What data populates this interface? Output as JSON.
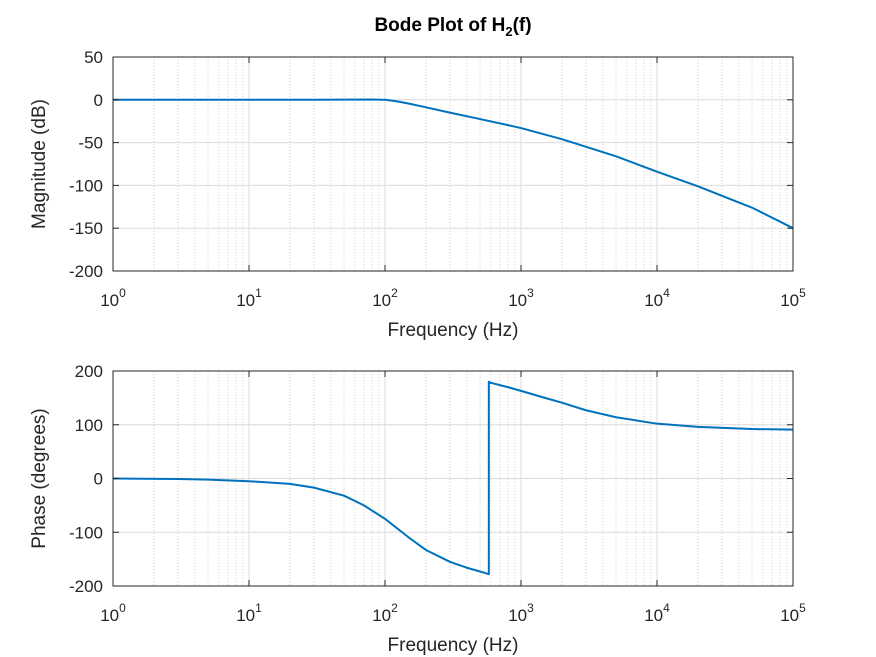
{
  "title": {
    "main": "Bode Plot of H",
    "sub": "2",
    "suffix": "(f)"
  },
  "chart_data": [
    {
      "type": "line",
      "xscale": "log",
      "xlim": [
        1,
        100000
      ],
      "ylim": [
        -200,
        50
      ],
      "grid": true,
      "minor_grid": true,
      "xlabel": "Frequency (Hz)",
      "ylabel": "Magnitude (dB)",
      "x_ticks": [
        {
          "base": "10",
          "exp": "0",
          "value": 1
        },
        {
          "base": "10",
          "exp": "1",
          "value": 10
        },
        {
          "base": "10",
          "exp": "2",
          "value": 100
        },
        {
          "base": "10",
          "exp": "3",
          "value": 1000
        },
        {
          "base": "10",
          "exp": "4",
          "value": 10000
        },
        {
          "base": "10",
          "exp": "5",
          "value": 100000
        }
      ],
      "y_ticks": [
        {
          "label": "50",
          "value": 50
        },
        {
          "label": "0",
          "value": 0
        },
        {
          "label": "-50",
          "value": -50
        },
        {
          "label": "-100",
          "value": -100
        },
        {
          "label": "-150",
          "value": -150
        },
        {
          "label": "-200",
          "value": -200
        }
      ],
      "series": [
        {
          "color": "#0072bd",
          "x": [
            1,
            10,
            30,
            50,
            80,
            100,
            120,
            150,
            200,
            300,
            500,
            700,
            1000,
            2000,
            5000,
            10000,
            20000,
            50000,
            100000
          ],
          "y": [
            0,
            0,
            0,
            0.2,
            0.4,
            0,
            -1.6,
            -4.5,
            -8.8,
            -15,
            -22.5,
            -27.5,
            -33,
            -46,
            -66,
            -84,
            -101,
            -126,
            -150
          ]
        }
      ]
    },
    {
      "type": "line",
      "xscale": "log",
      "xlim": [
        1,
        100000
      ],
      "ylim": [
        -200,
        200
      ],
      "grid": true,
      "minor_grid": true,
      "xlabel": "Frequency (Hz)",
      "ylabel": "Phase (degrees)",
      "x_ticks": [
        {
          "base": "10",
          "exp": "0",
          "value": 1
        },
        {
          "base": "10",
          "exp": "1",
          "value": 10
        },
        {
          "base": "10",
          "exp": "2",
          "value": 100
        },
        {
          "base": "10",
          "exp": "3",
          "value": 1000
        },
        {
          "base": "10",
          "exp": "4",
          "value": 10000
        },
        {
          "base": "10",
          "exp": "5",
          "value": 100000
        }
      ],
      "y_ticks": [
        {
          "label": "200",
          "value": 200
        },
        {
          "label": "100",
          "value": 100
        },
        {
          "label": "0",
          "value": 0
        },
        {
          "label": "-100",
          "value": -100
        },
        {
          "label": "-200",
          "value": -200
        }
      ],
      "series": [
        {
          "color": "#0072bd",
          "x": [
            1,
            3,
            5,
            10,
            20,
            30,
            50,
            70,
            100,
            150,
            200,
            300,
            400,
            500,
            580,
            580,
            600,
            800,
            1000,
            1500,
            2000,
            3000,
            5000,
            10000,
            20000,
            50000,
            100000
          ],
          "y": [
            0,
            -1,
            -2,
            -5,
            -10,
            -17,
            -32,
            -50,
            -75,
            -110,
            -133,
            -155,
            -166,
            -173,
            -178,
            180,
            178,
            170,
            163,
            150,
            141,
            127,
            114,
            102,
            96,
            92,
            91
          ]
        }
      ]
    }
  ]
}
